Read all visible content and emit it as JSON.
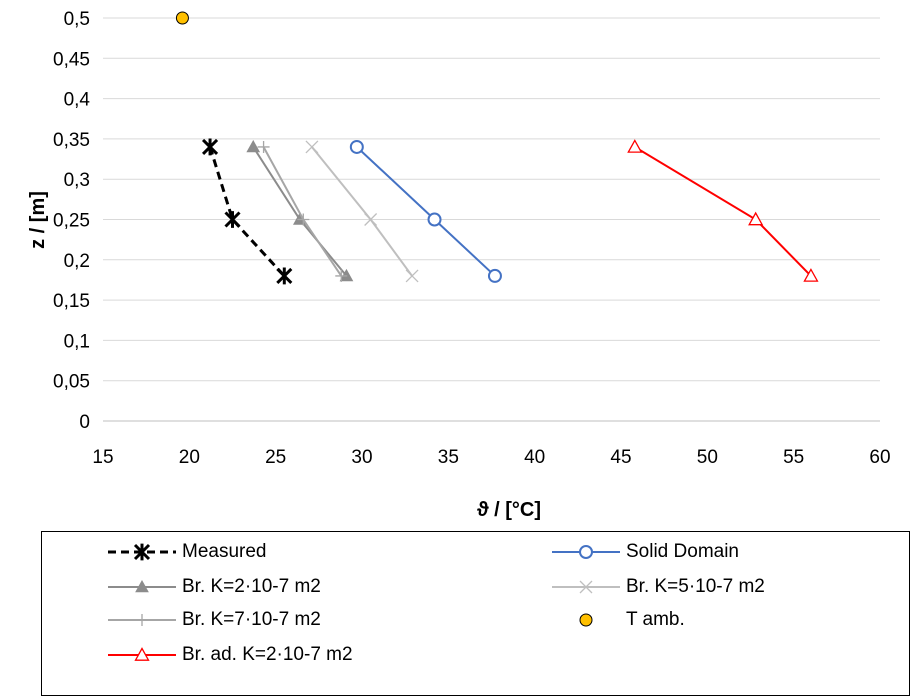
{
  "chart_data": {
    "type": "scatter",
    "xlabel": "ϑ / [°C]",
    "ylabel": "z / [m]",
    "xlim": [
      15,
      60
    ],
    "ylim": [
      0,
      0.5
    ],
    "xticks": [
      "15",
      "20",
      "25",
      "30",
      "35",
      "40",
      "45",
      "50",
      "55",
      "60"
    ],
    "yticks": [
      "0",
      "0,05",
      "0,1",
      "0,15",
      "0,2",
      "0,25",
      "0,3",
      "0,35",
      "0,4",
      "0,45",
      "0,5"
    ],
    "grid": "horizontal",
    "legend_position": "bottom",
    "series": [
      {
        "name": "Measured",
        "color": "#000000",
        "marker": "asterisk",
        "line": "dashed",
        "x": [
          21.2,
          22.5,
          25.5
        ],
        "y": [
          0.34,
          0.25,
          0.18
        ]
      },
      {
        "name": "Solid Domain",
        "color": "#4472C4",
        "marker": "circle",
        "line": "solid",
        "x": [
          29.7,
          34.2,
          37.7
        ],
        "y": [
          0.34,
          0.25,
          0.18
        ]
      },
      {
        "name": "Br. K=2·10-7 m2",
        "color": "#8C8C8C",
        "marker": "triangle-filled",
        "line": "solid",
        "x": [
          23.7,
          26.4,
          29.1
        ],
        "y": [
          0.34,
          0.25,
          0.18
        ]
      },
      {
        "name": "Br. K=5·10-7 m2",
        "color": "#BFBFBF",
        "marker": "x",
        "line": "solid",
        "x": [
          27.1,
          30.5,
          32.9
        ],
        "y": [
          0.34,
          0.25,
          0.18
        ]
      },
      {
        "name": "Br. K=7·10-7 m2",
        "color": "#A6A6A6",
        "marker": "plus",
        "line": "solid",
        "x": [
          24.3,
          26.6,
          28.8
        ],
        "y": [
          0.34,
          0.25,
          0.18
        ]
      },
      {
        "name": "T amb.",
        "color": "#FFC000",
        "marker": "circle-filled",
        "line": "none",
        "x": [
          19.6
        ],
        "y": [
          0.5
        ]
      },
      {
        "name": "Br. ad. K=2·10-7 m2",
        "color": "#FF0000",
        "marker": "triangle",
        "line": "solid",
        "x": [
          45.8,
          52.8,
          56.0
        ],
        "y": [
          0.34,
          0.25,
          0.18
        ]
      }
    ]
  }
}
